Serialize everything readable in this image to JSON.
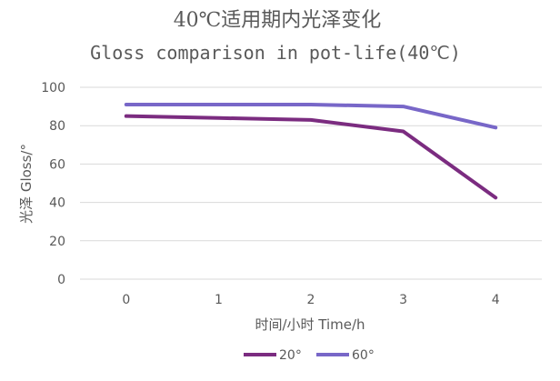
{
  "chart_data": {
    "type": "line",
    "title": "40℃适用期内光泽变化",
    "subtitle": "Gloss comparison in pot-life(40℃)",
    "xlabel": "时间/小时  Time/h",
    "ylabel": "光泽 Gloss/°",
    "categories": [
      "0",
      "1",
      "2",
      "3",
      "4"
    ],
    "y_ticks": [
      "0",
      "20",
      "40",
      "60",
      "80",
      "100"
    ],
    "ylim": [
      0,
      100
    ],
    "grid": true,
    "legend_position": "bottom",
    "series": [
      {
        "name": "20°",
        "color": "#7b2c80",
        "values": [
          85,
          84,
          83,
          77,
          42.5
        ]
      },
      {
        "name": "60°",
        "color": "#7867c8",
        "values": [
          91,
          91,
          91,
          90,
          79
        ]
      }
    ]
  }
}
